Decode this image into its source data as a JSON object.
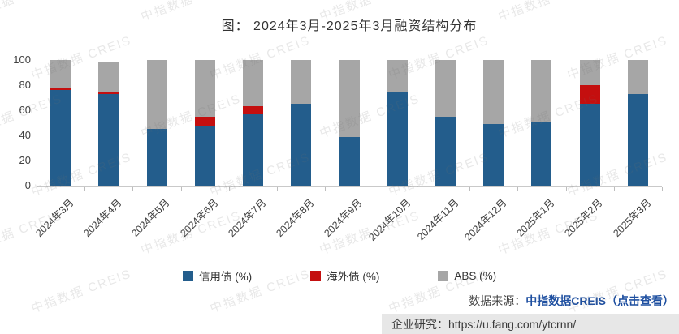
{
  "title": "图：  2024年3月-2025年3月融资结构分布",
  "watermark": {
    "text": "中指数据 CREIS"
  },
  "chart_data": {
    "type": "bar",
    "stacked": true,
    "title": "图：  2024年3月-2025年3月融资结构分布",
    "categories": [
      "2024年3月",
      "2024年4月",
      "2024年5月",
      "2024年6月",
      "2024年7月",
      "2024年8月",
      "2024年9月",
      "2024年10月",
      "2024年11月",
      "2024年12月",
      "2025年1月",
      "2025年2月",
      "2025年3月"
    ],
    "series": [
      {
        "name": "信用债 (%)",
        "color": "#235d8c",
        "values": [
          76,
          73,
          45,
          48,
          57,
          65,
          39,
          75,
          55,
          49,
          51,
          65,
          73
        ]
      },
      {
        "name": "海外债 (%)",
        "color": "#c40f0f",
        "values": [
          2,
          2,
          0,
          7,
          6,
          0,
          0,
          0,
          0,
          0,
          0,
          15,
          0
        ]
      },
      {
        "name": "ABS (%)",
        "color": "#a6a6a6",
        "values": [
          22,
          24,
          55,
          45,
          37,
          35,
          61,
          25,
          45,
          51,
          49,
          20,
          27
        ]
      }
    ],
    "ylim": [
      0,
      100
    ],
    "yticks": [
      0,
      20,
      40,
      60,
      80,
      100
    ],
    "grid": false,
    "legend_position": "bottom"
  },
  "footer": {
    "source_label": "数据来源：",
    "source_link": "中指数据CREIS（点击查看）",
    "research_label": "企业研究：",
    "research_url": "https://u.fang.com/ytcrnn/"
  }
}
